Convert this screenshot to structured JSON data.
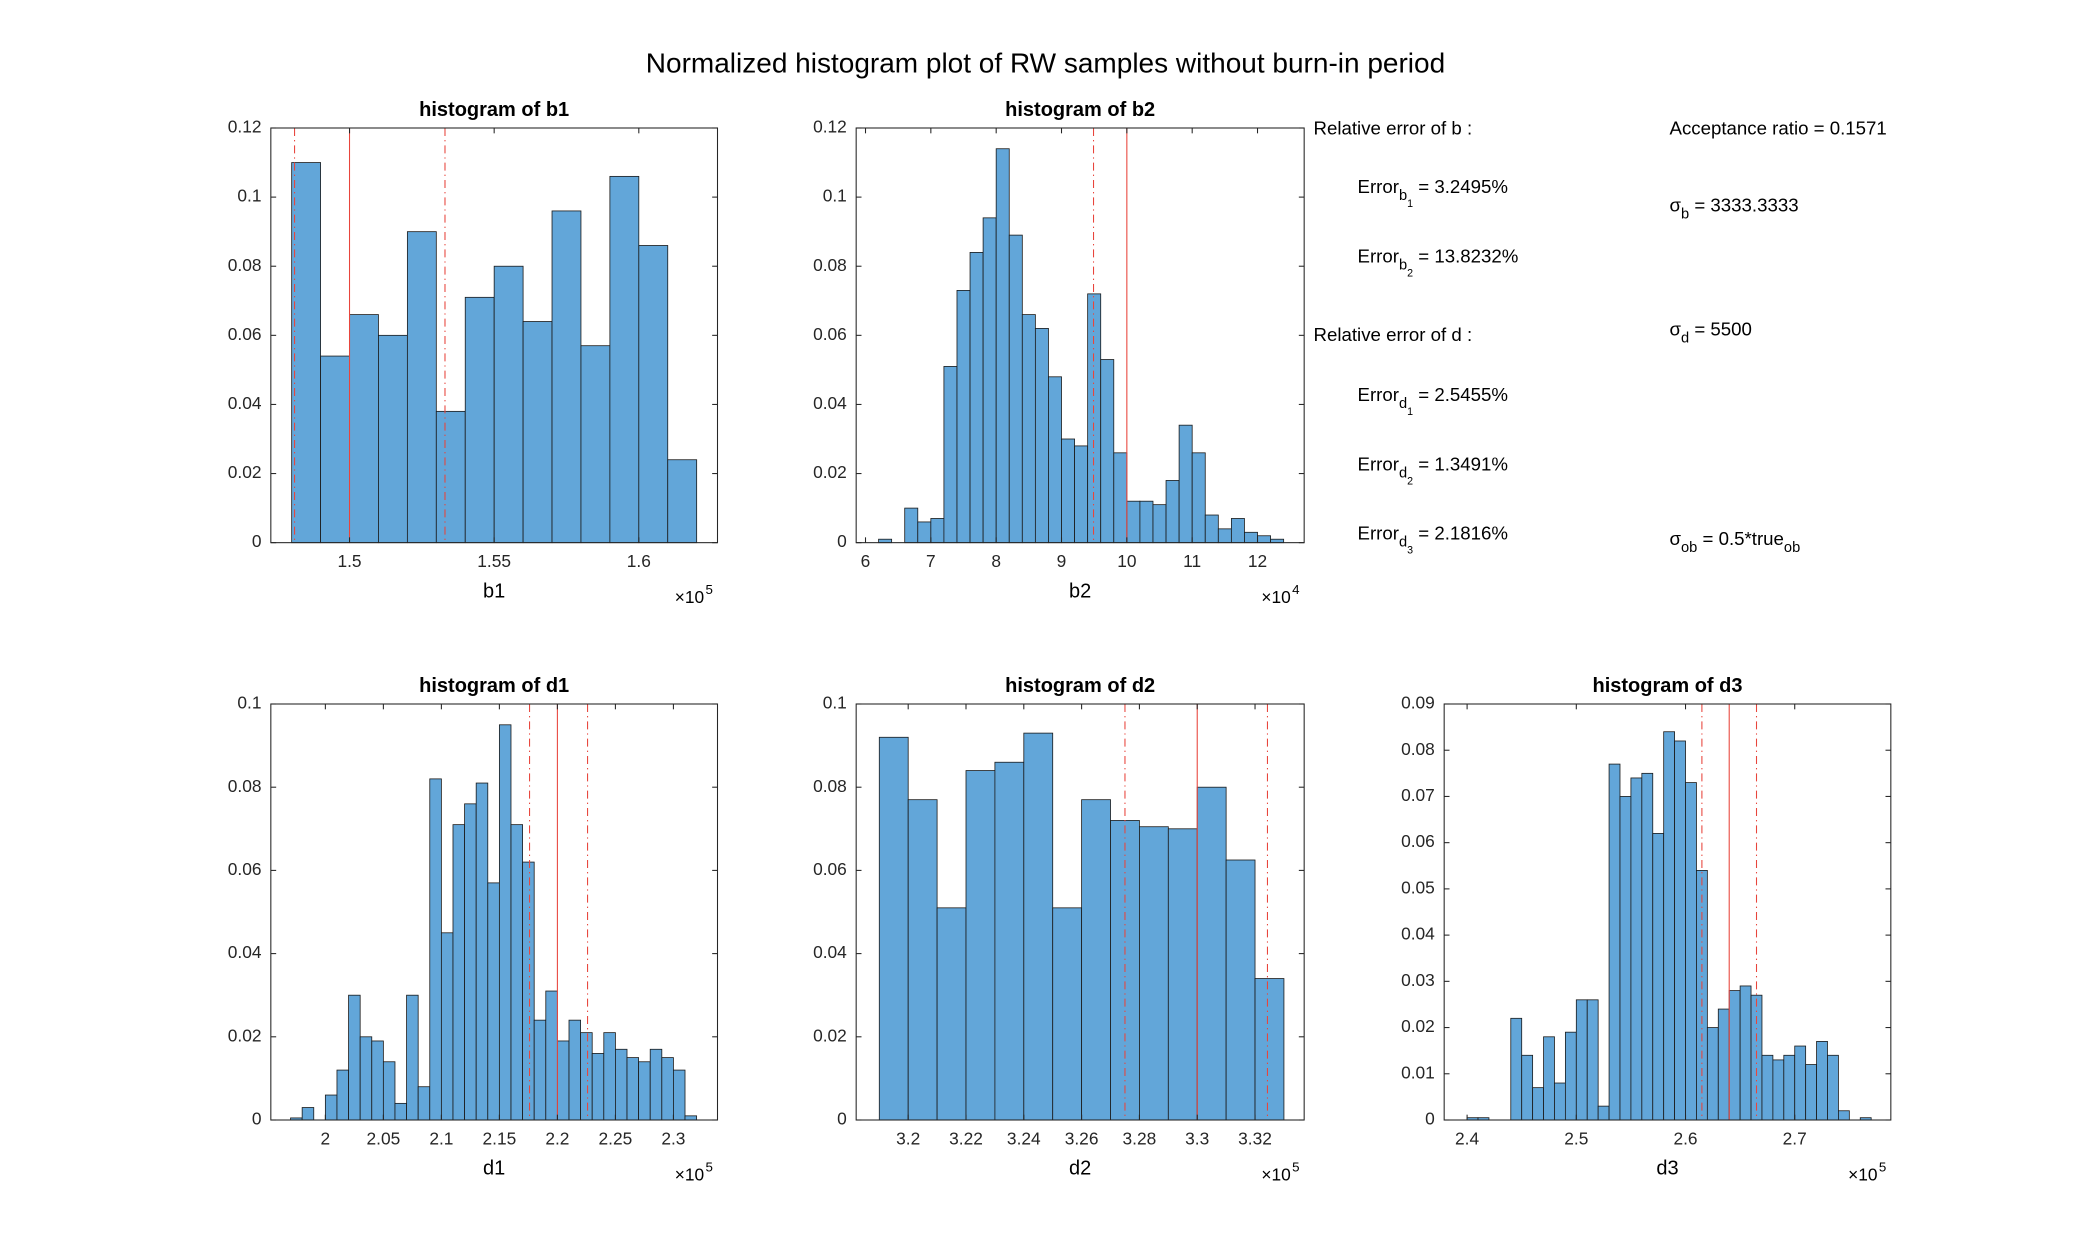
{
  "title": "Normalized histogram plot of RW samples without burn-in period",
  "annotations": [
    [
      {
        "text": "Relative error of b :"
      }
    ],
    [
      {
        "text": "Error"
      },
      {
        "sub": "b"
      },
      {
        "subsub": "1"
      },
      {
        "text": " = 3.2495%"
      }
    ],
    [
      {
        "text": "Error"
      },
      {
        "sub": "b"
      },
      {
        "subsub": "2"
      },
      {
        "text": " = 13.8232%"
      }
    ],
    [
      {
        "text": "Relative error of d :"
      }
    ],
    [
      {
        "text": "Error"
      },
      {
        "sub": "d"
      },
      {
        "subsub": "1"
      },
      {
        "text": " = 2.5455%"
      }
    ],
    [
      {
        "text": "Error"
      },
      {
        "sub": "d"
      },
      {
        "subsub": "2"
      },
      {
        "text": " = 1.3491%"
      }
    ],
    [
      {
        "text": "Error"
      },
      {
        "sub": "d"
      },
      {
        "subsub": "3"
      },
      {
        "text": " = 2.1816%"
      }
    ],
    [
      {
        "text": "Acceptance ratio = 0.1571"
      }
    ],
    [
      {
        "text": "σ"
      },
      {
        "sub": "b"
      },
      {
        "text": " = 3333.3333"
      }
    ],
    [
      {
        "text": "σ"
      },
      {
        "sub": "d"
      },
      {
        "text": " = 5500"
      }
    ],
    [
      {
        "text": "σ"
      },
      {
        "sub": "ob"
      },
      {
        "text": " = 0.5*true"
      },
      {
        "sub": "ob"
      }
    ]
  ],
  "chart_data": [
    {
      "type": "histogram",
      "title": "histogram of b1",
      "x_label": "b1",
      "x_multiplier": {
        "base": "×10",
        "exponent": "5"
      },
      "color": "#62a6d9",
      "ref_color": "#e8453c",
      "bins": [
        1.48,
        1.49,
        1.5,
        1.51,
        1.52,
        1.53,
        1.54,
        1.55,
        1.56,
        1.57,
        1.58,
        1.59,
        1.6,
        1.61,
        1.62
      ],
      "values": [
        0.11,
        0.054,
        0.066,
        0.06,
        0.09,
        0.038,
        0.071,
        0.08,
        0.064,
        0.096,
        0.057,
        0.106,
        0.086,
        0.024
      ],
      "ref_lines": [
        {
          "x": 1.481,
          "style": "dashdot"
        },
        {
          "x": 1.5,
          "style": "solid"
        },
        {
          "x": 1.533,
          "style": "dashdot"
        }
      ],
      "xlim": [
        1.4728,
        1.6272
      ],
      "xticks": [
        1.5,
        1.55,
        1.6
      ],
      "ylim": [
        0,
        0.12
      ],
      "yticks": [
        0,
        0.02,
        0.04,
        0.06,
        0.08,
        0.1,
        0.12
      ]
    },
    {
      "type": "histogram",
      "title": "histogram of b2",
      "x_label": "b2",
      "x_multiplier": {
        "base": "×10",
        "exponent": "4"
      },
      "color": "#62a6d9",
      "ref_color": "#e8453c",
      "bins": [
        6.2,
        6.4,
        6.6,
        6.8,
        7,
        7.2,
        7.4,
        7.6,
        7.8,
        8,
        8.2,
        8.4,
        8.6,
        8.8,
        9,
        9.2,
        9.4,
        9.6,
        9.8,
        10,
        10.2,
        10.4,
        10.6,
        10.8,
        11,
        11.2,
        11.4,
        11.6,
        11.8,
        12,
        12.2,
        12.4
      ],
      "values": [
        0.001,
        0,
        0.01,
        0.006,
        0.007,
        0.051,
        0.073,
        0.084,
        0.094,
        0.114,
        0.089,
        0.066,
        0.062,
        0.048,
        0.03,
        0.028,
        0.072,
        0.053,
        0.026,
        0.012,
        0.012,
        0.011,
        0.018,
        0.034,
        0.026,
        0.008,
        0.004,
        0.007,
        0.003,
        0.002,
        0.001
      ],
      "ref_lines": [
        {
          "x": 9.49,
          "style": "dashdot"
        },
        {
          "x": 10,
          "style": "solid"
        }
      ],
      "xlim": [
        5.857,
        12.714
      ],
      "xticks": [
        6,
        7,
        8,
        9,
        10,
        11,
        12
      ],
      "ylim": [
        0,
        0.12
      ],
      "yticks": [
        0,
        0.02,
        0.04,
        0.06,
        0.08,
        0.1,
        0.12
      ]
    },
    {
      "type": "histogram",
      "title": "histogram of d1",
      "x_label": "d1",
      "x_multiplier": {
        "base": "×10",
        "exponent": "5"
      },
      "color": "#62a6d9",
      "ref_color": "#e8453c",
      "bins": [
        1.97,
        1.98,
        1.99,
        2,
        2.01,
        2.02,
        2.03,
        2.04,
        2.05,
        2.06,
        2.07,
        2.08,
        2.09,
        2.1,
        2.11,
        2.12,
        2.13,
        2.14,
        2.15,
        2.16,
        2.17,
        2.18,
        2.19,
        2.2,
        2.21,
        2.22,
        2.23,
        2.24,
        2.25,
        2.26,
        2.27,
        2.28,
        2.29,
        2.3,
        2.31,
        2.32
      ],
      "values": [
        0.0005,
        0.003,
        0,
        0.006,
        0.012,
        0.03,
        0.02,
        0.019,
        0.014,
        0.004,
        0.03,
        0.008,
        0.082,
        0.045,
        0.071,
        0.076,
        0.081,
        0.057,
        0.095,
        0.071,
        0.062,
        0.024,
        0.031,
        0.019,
        0.024,
        0.021,
        0.016,
        0.021,
        0.017,
        0.015,
        0.014,
        0.017,
        0.015,
        0.012,
        0.001
      ],
      "ref_lines": [
        {
          "x": 2.176,
          "style": "dashdot"
        },
        {
          "x": 2.2,
          "style": "solid"
        },
        {
          "x": 2.226,
          "style": "dashdot"
        }
      ],
      "xlim": [
        1.953,
        2.338
      ],
      "xticks": [
        2,
        2.05,
        2.1,
        2.15,
        2.2,
        2.25,
        2.3
      ],
      "ylim": [
        0,
        0.1
      ],
      "yticks": [
        0,
        0.02,
        0.04,
        0.06,
        0.08,
        0.1
      ]
    },
    {
      "type": "histogram",
      "title": "histogram of d2",
      "x_label": "d2",
      "x_multiplier": {
        "base": "×10",
        "exponent": "5"
      },
      "color": "#62a6d9",
      "ref_color": "#e8453c",
      "bins": [
        3.19,
        3.2,
        3.21,
        3.22,
        3.23,
        3.24,
        3.25,
        3.26,
        3.27,
        3.28,
        3.29,
        3.3,
        3.31,
        3.32,
        3.33
      ],
      "values": [
        0.092,
        0.077,
        0.051,
        0.084,
        0.086,
        0.093,
        0.051,
        0.077,
        0.072,
        0.0705,
        0.07,
        0.08,
        0.0625,
        0.034
      ],
      "ref_lines": [
        {
          "x": 3.275,
          "style": "dashdot"
        },
        {
          "x": 3.3,
          "style": "solid"
        },
        {
          "x": 3.3243,
          "style": "dashdot"
        }
      ],
      "xlim": [
        3.182,
        3.337
      ],
      "xticks": [
        3.2,
        3.22,
        3.24,
        3.26,
        3.28,
        3.3,
        3.32
      ],
      "ylim": [
        0,
        0.1
      ],
      "yticks": [
        0,
        0.02,
        0.04,
        0.06,
        0.08,
        0.1
      ]
    },
    {
      "type": "histogram",
      "title": "histogram of d3",
      "x_label": "d3",
      "x_multiplier": {
        "base": "×10",
        "exponent": "5"
      },
      "color": "#62a6d9",
      "ref_color": "#e8453c",
      "bins": [
        2.4,
        2.41,
        2.42,
        2.43,
        2.44,
        2.45,
        2.46,
        2.47,
        2.48,
        2.49,
        2.5,
        2.51,
        2.52,
        2.53,
        2.54,
        2.55,
        2.56,
        2.57,
        2.58,
        2.59,
        2.6,
        2.61,
        2.62,
        2.63,
        2.64,
        2.65,
        2.66,
        2.67,
        2.68,
        2.69,
        2.7,
        2.71,
        2.72,
        2.73,
        2.74,
        2.75,
        2.76,
        2.77
      ],
      "values": [
        0.0005,
        0.0005,
        0,
        0,
        0.022,
        0.014,
        0.007,
        0.018,
        0.008,
        0.019,
        0.026,
        0.026,
        0.003,
        0.077,
        0.07,
        0.074,
        0.075,
        0.062,
        0.084,
        0.082,
        0.073,
        0.054,
        0.02,
        0.024,
        0.028,
        0.029,
        0.027,
        0.014,
        0.013,
        0.014,
        0.016,
        0.012,
        0.017,
        0.014,
        0.002,
        0,
        0.0005
      ],
      "ref_lines": [
        {
          "x": 2.615,
          "style": "dashdot"
        },
        {
          "x": 2.64,
          "style": "solid"
        },
        {
          "x": 2.665,
          "style": "dashdot"
        }
      ],
      "xlim": [
        2.379,
        2.788
      ],
      "xticks": [
        2.4,
        2.5,
        2.6,
        2.7
      ],
      "ylim": [
        0,
        0.09
      ],
      "yticks": [
        0,
        0.01,
        0.02,
        0.03,
        0.04,
        0.05,
        0.06,
        0.07,
        0.08,
        0.09
      ]
    }
  ]
}
